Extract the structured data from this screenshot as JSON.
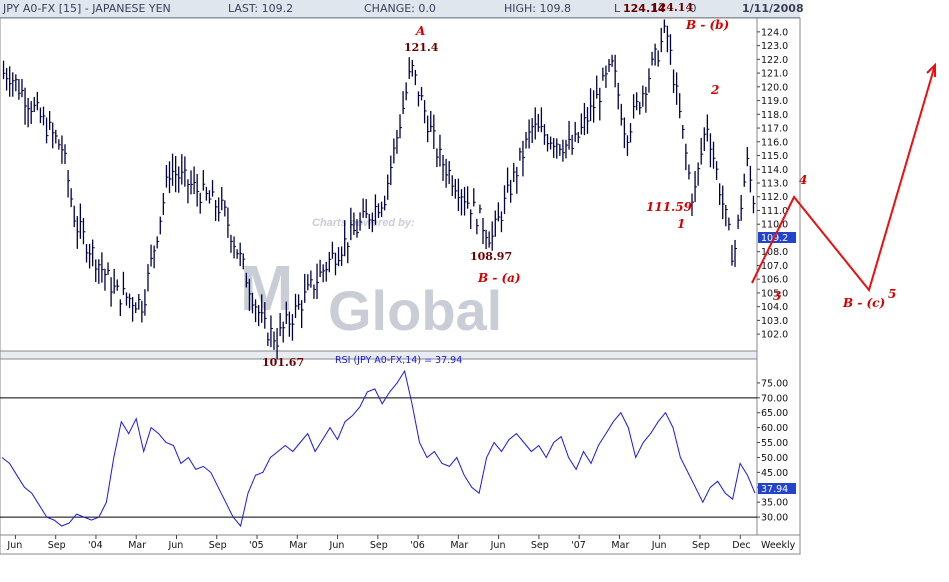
{
  "header": {
    "title": "JPY A0-FX [15] - JAPANESE YEN",
    "last": "LAST: 109.2",
    "change": "CHANGE: 0.0",
    "high": "HIGH: 109.8",
    "low_prefix": "L",
    "low_value": "124.14",
    "low_suffix": ".0",
    "date": "1/11/2008"
  },
  "watermark": {
    "small": "Charts powered by:",
    "big_left": "M",
    "big_right": "Global"
  },
  "price_axis": {
    "ticks": [
      "124.0",
      "123.0",
      "122.0",
      "121.0",
      "120.0",
      "119.0",
      "118.0",
      "117.0",
      "116.0",
      "115.0",
      "114.0",
      "113.0",
      "112.0",
      "111.0",
      "110.0",
      "109.2",
      "108.0",
      "107.0",
      "106.0",
      "105.0",
      "104.0",
      "103.0",
      "102.0"
    ],
    "last_label": "109.2"
  },
  "rsi": {
    "title": "RSI (JPY A0-FX,14) = 37.94",
    "ticks": [
      "75.00",
      "70.00",
      "65.00",
      "60.00",
      "55.00",
      "50.00",
      "45.00",
      "40.00",
      "37.94",
      "35.00",
      "30.00"
    ],
    "last_label": "37.94",
    "levels": [
      70,
      30
    ]
  },
  "x_axis": {
    "labels": [
      "Jun",
      "Sep",
      "'04",
      "Mar",
      "Jun",
      "Sep",
      "'05",
      "Mar",
      "Jun",
      "Sep",
      "'06",
      "Mar",
      "Jun",
      "Sep",
      "'07",
      "Mar",
      "Jun",
      "Sep",
      "Dec"
    ],
    "period_label": "Weekly"
  },
  "annotations": {
    "a_label": "A",
    "a_price": "121.4",
    "low_price": "101.67",
    "b_a_price": "108.97",
    "b_a_label": "B - (a)",
    "b_b_price": "124.14",
    "b_b_label": "B - (b)",
    "wave2": "2",
    "wave1_price": "111.59",
    "wave1": "1",
    "wave3": "3",
    "wave4": "4",
    "wave5": "5",
    "b_c_label": "B - (c)"
  },
  "colors": {
    "price_bars": "#000044",
    "rsi_line": "#1a1adc",
    "projection": "#e81010",
    "last_tag": "#2244cc"
  },
  "chart_data": [
    {
      "type": "ohlc",
      "title": "JPY A0-FX [15] - JAPANESE YEN",
      "interval": "Weekly",
      "ylim": [
        101.5,
        124.5
      ],
      "key_points": [
        {
          "x": "2003-05",
          "y": 121.0
        },
        {
          "x": "2003-09",
          "y": 115.5
        },
        {
          "x": "2003-10",
          "y": 110.0
        },
        {
          "x": "2004-01",
          "y": 105.0
        },
        {
          "x": "2004-03",
          "y": 104.2
        },
        {
          "x": "2004-05",
          "y": 114.0
        },
        {
          "x": "2004-09",
          "y": 111.0
        },
        {
          "x": "2004-12",
          "y": 102.5
        },
        {
          "x": "2005-01",
          "y": 101.67
        },
        {
          "x": "2005-05",
          "y": 107.5
        },
        {
          "x": "2005-09",
          "y": 112.0
        },
        {
          "x": "2005-11",
          "y": 121.4
        },
        {
          "x": "2006-01",
          "y": 115.0
        },
        {
          "x": "2006-05",
          "y": 108.97
        },
        {
          "x": "2006-08",
          "y": 117.0
        },
        {
          "x": "2006-11",
          "y": 115.5
        },
        {
          "x": "2007-02",
          "y": 121.5
        },
        {
          "x": "2007-03",
          "y": 116.5
        },
        {
          "x": "2007-06",
          "y": 124.14
        },
        {
          "x": "2007-08",
          "y": 111.59
        },
        {
          "x": "2007-09",
          "y": 117.5
        },
        {
          "x": "2007-11",
          "y": 107.5
        },
        {
          "x": "2007-12",
          "y": 114.5
        },
        {
          "x": "2008-01",
          "y": 109.2
        }
      ],
      "last": 109.2
    },
    {
      "type": "line",
      "title": "RSI (JPY A0-FX,14) = 37.94",
      "ylim": [
        25,
        80
      ],
      "reference_lines": [
        70,
        30
      ],
      "series": [
        {
          "name": "RSI (JPY A0-FX,14)",
          "values": [
            50,
            48,
            44,
            40,
            38,
            34,
            30,
            29,
            27,
            28,
            31,
            30,
            29,
            30,
            35,
            50,
            62,
            58,
            63,
            52,
            60,
            58,
            55,
            54,
            48,
            50,
            46,
            47,
            45,
            40,
            35,
            30,
            27,
            38,
            44,
            45,
            50,
            52,
            54,
            52,
            55,
            58,
            52,
            56,
            60,
            56,
            62,
            64,
            67,
            72,
            73,
            68,
            72,
            75,
            79,
            68,
            55,
            50,
            52,
            48,
            47,
            50,
            44,
            40,
            38,
            50,
            55,
            52,
            56,
            58,
            55,
            52,
            54,
            50,
            55,
            57,
            50,
            46,
            52,
            48,
            54,
            58,
            62,
            65,
            60,
            50,
            55,
            58,
            62,
            65,
            60,
            50,
            45,
            40,
            35,
            40,
            42,
            38,
            36,
            48,
            44,
            38
          ]
        }
      ],
      "last": 37.94
    }
  ]
}
